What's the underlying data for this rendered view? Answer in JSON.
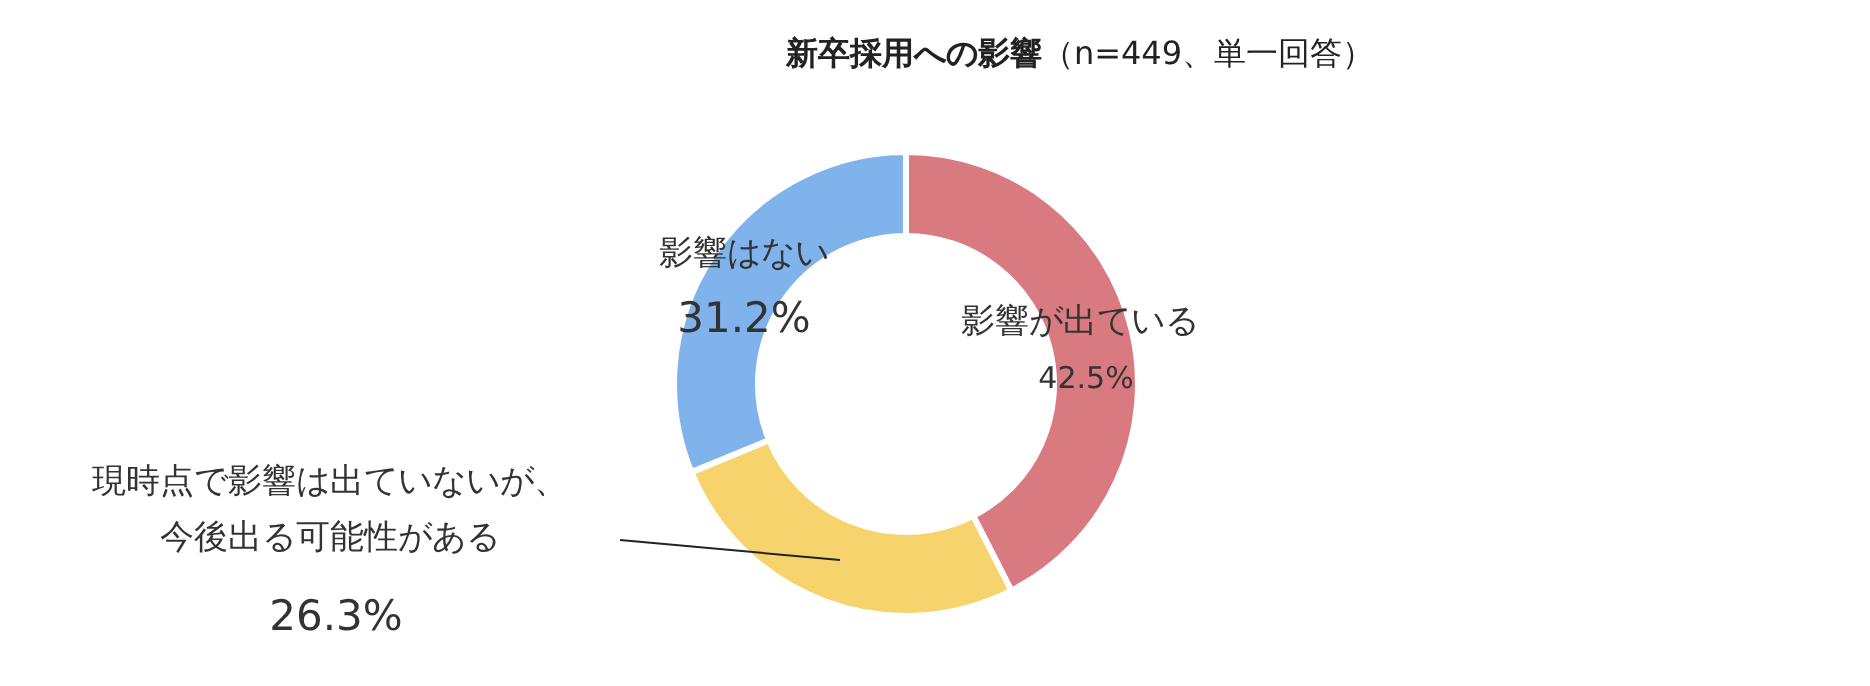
{
  "chart_data": {
    "type": "donut",
    "title": "**新卒採用への影響**（n=449、単一回答）",
    "categories": [
      "影響が出ている",
      "現時点で影響は出ていないが、今後出る可能性がある",
      "影響はない"
    ],
    "values": [
      42.5,
      26.3,
      31.2
    ],
    "value_labels": [
      "42.5%",
      "26.3%",
      "31.2%"
    ],
    "colors": [
      "#d97a80",
      "#f6d36c",
      "#80b3ec"
    ],
    "legend": false
  }
}
